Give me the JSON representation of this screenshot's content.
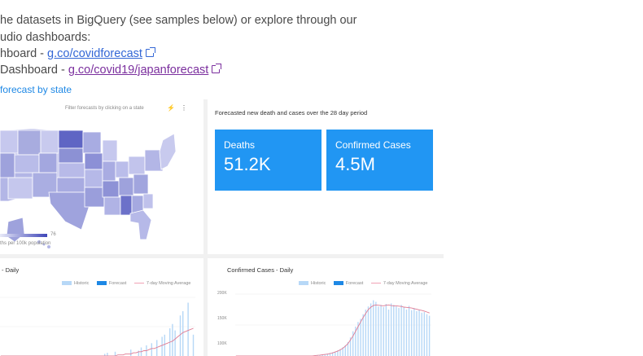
{
  "intro": {
    "line1": "he datasets in BigQuery (see samples below) or explore through our",
    "line2": "udio dashboards:",
    "line3_prefix": "hboard - ",
    "link1": "g.co/covidforecast",
    "line4_prefix": "Dashboard - ",
    "link2": "g.co/covid19/japanforecast",
    "caption": "forecast by state"
  },
  "dashboard": {
    "map_hint": "Filter forecasts by clicking on a state",
    "legend_max": "76",
    "legend_label": "ths per 100k population",
    "forecast_title": "Forecasted new death and cases over the 28 day period",
    "metrics": [
      {
        "label": "Deaths",
        "value": "51.2K"
      },
      {
        "label": "Confirmed Cases",
        "value": "4.5M"
      }
    ],
    "chart_left_title": "- Daily",
    "chart_right_title": "Confirmed Cases - Daily",
    "legend": {
      "historic": "Historic",
      "forecast": "Forecast",
      "moving_avg": "7-day Moving Average"
    },
    "colors": {
      "historic": "#b7d8f7",
      "forecast": "#1e88e5",
      "moving_avg": "#f0a3b5",
      "metric_bg": "#2196f3"
    }
  },
  "chart_data": [
    {
      "type": "bar",
      "title": "- Daily",
      "series": [
        {
          "name": "Historic",
          "values": [
            0,
            0,
            0,
            0,
            0,
            0,
            0,
            0,
            0,
            0,
            0,
            0,
            0,
            0,
            0,
            0,
            0,
            0,
            0,
            0,
            0,
            0,
            0,
            0,
            0,
            0,
            0,
            0,
            0,
            0,
            0,
            0,
            0,
            0,
            0,
            0,
            0,
            0,
            0,
            0,
            2,
            3,
            0,
            0,
            4,
            0,
            0,
            0,
            0,
            0,
            6,
            0,
            0,
            5,
            8,
            0,
            10,
            0,
            12,
            0,
            15,
            0,
            18,
            20,
            0,
            26,
            30,
            24,
            0,
            38,
            42,
            0,
            50,
            0,
            20
          ]
        },
        {
          "name": "7-day Moving Average",
          "values": [
            0,
            0,
            0,
            0,
            0,
            0,
            0,
            0,
            0,
            0,
            0,
            0,
            0,
            0,
            0,
            0,
            0,
            0,
            0,
            0,
            0,
            0,
            0,
            0,
            0,
            0,
            0,
            0,
            0,
            0,
            0,
            0,
            0,
            0,
            0,
            0,
            0,
            0,
            0,
            0,
            0,
            0,
            0,
            0,
            0,
            1,
            1,
            1,
            2,
            2,
            2,
            3,
            3,
            4,
            4,
            5,
            5,
            6,
            7,
            7,
            8,
            9,
            10,
            11,
            12,
            13,
            14,
            16,
            18,
            20,
            22,
            23,
            24,
            25,
            26
          ]
        }
      ]
    },
    {
      "type": "bar",
      "title": "Confirmed Cases - Daily",
      "ylim": [
        0,
        200
      ],
      "yticks": [
        "200K",
        "150K",
        "100K"
      ],
      "series": [
        {
          "name": "Historic",
          "values": [
            0,
            0,
            0,
            0,
            0,
            0,
            0,
            0,
            0,
            0,
            0,
            0,
            0,
            0,
            0,
            0,
            0,
            0,
            0,
            0,
            0,
            0,
            0,
            0,
            0,
            0,
            0,
            0,
            0,
            0,
            0,
            2,
            3,
            4,
            5,
            6,
            8,
            10,
            12,
            14,
            18,
            22,
            28,
            35,
            45,
            60,
            80,
            95,
            110,
            120,
            135,
            150,
            160,
            170,
            180,
            175,
            160,
            165,
            158,
            168,
            150,
            170,
            165,
            160,
            155,
            165,
            158,
            150,
            162,
            148,
            155,
            145,
            150,
            140,
            142,
            135,
            130
          ]
        },
        {
          "name": "7-day Moving Average",
          "values": [
            0,
            0,
            0,
            0,
            0,
            0,
            0,
            0,
            0,
            0,
            0,
            0,
            0,
            0,
            0,
            0,
            0,
            0,
            0,
            0,
            0,
            0,
            0,
            0,
            0,
            0,
            0,
            0,
            0,
            0,
            0,
            1,
            2,
            3,
            4,
            5,
            6,
            8,
            10,
            13,
            16,
            20,
            25,
            32,
            40,
            52,
            65,
            80,
            95,
            110,
            125,
            138,
            150,
            158,
            163,
            165,
            164,
            163,
            162,
            164,
            165,
            163,
            162,
            162,
            161,
            160,
            158,
            157,
            156,
            155,
            153,
            151,
            149,
            147,
            145,
            142,
            139
          ]
        }
      ]
    }
  ]
}
